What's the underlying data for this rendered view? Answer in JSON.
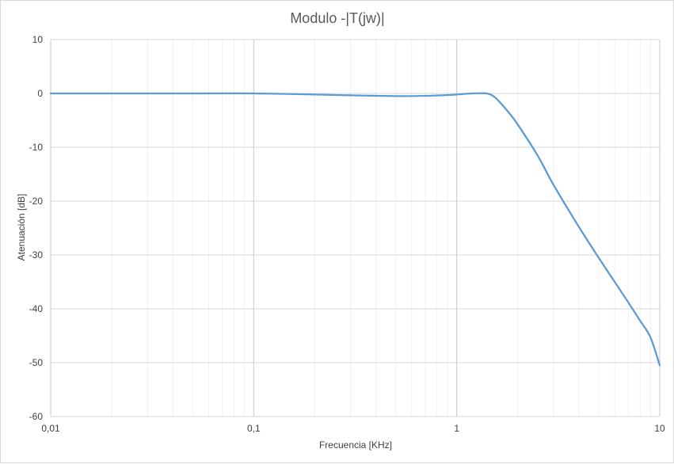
{
  "chart_data": {
    "type": "line",
    "title": "Modulo -|T(jw)|",
    "xlabel": "Frecuencia [KHz]",
    "ylabel": "Atenuación [dB]",
    "x_scale": "log",
    "xlim": [
      0.01,
      10
    ],
    "ylim": [
      -60,
      10
    ],
    "x_ticks": [
      0.01,
      0.1,
      1,
      10
    ],
    "x_tick_labels": [
      "0,01",
      "0,1",
      "1",
      "10"
    ],
    "y_ticks": [
      10,
      0,
      -10,
      -20,
      -30,
      -40,
      -50,
      -60
    ],
    "y_tick_labels": [
      "10",
      "0",
      "-10",
      "-20",
      "-30",
      "-40",
      "-50",
      "-60"
    ],
    "grid": true,
    "line_color": "#5b9bd5",
    "series": [
      {
        "x": [
          0.01,
          0.02,
          0.05,
          0.1,
          0.2,
          0.3,
          0.5,
          0.7,
          0.9,
          1.0,
          1.2,
          1.4,
          1.5,
          1.6,
          1.8,
          2.0,
          2.5,
          3.0,
          4.0,
          5.0,
          6.0,
          7.0,
          8.0,
          9.0,
          10.0
        ],
        "y": [
          0,
          0,
          0,
          0,
          -0.2,
          -0.35,
          -0.5,
          -0.45,
          -0.3,
          -0.2,
          0,
          0,
          -0.4,
          -1.3,
          -3.5,
          -5.8,
          -11.5,
          -17.0,
          -24.8,
          -30.5,
          -35.0,
          -38.8,
          -42.2,
          -45.3,
          -50.5
        ]
      }
    ]
  }
}
